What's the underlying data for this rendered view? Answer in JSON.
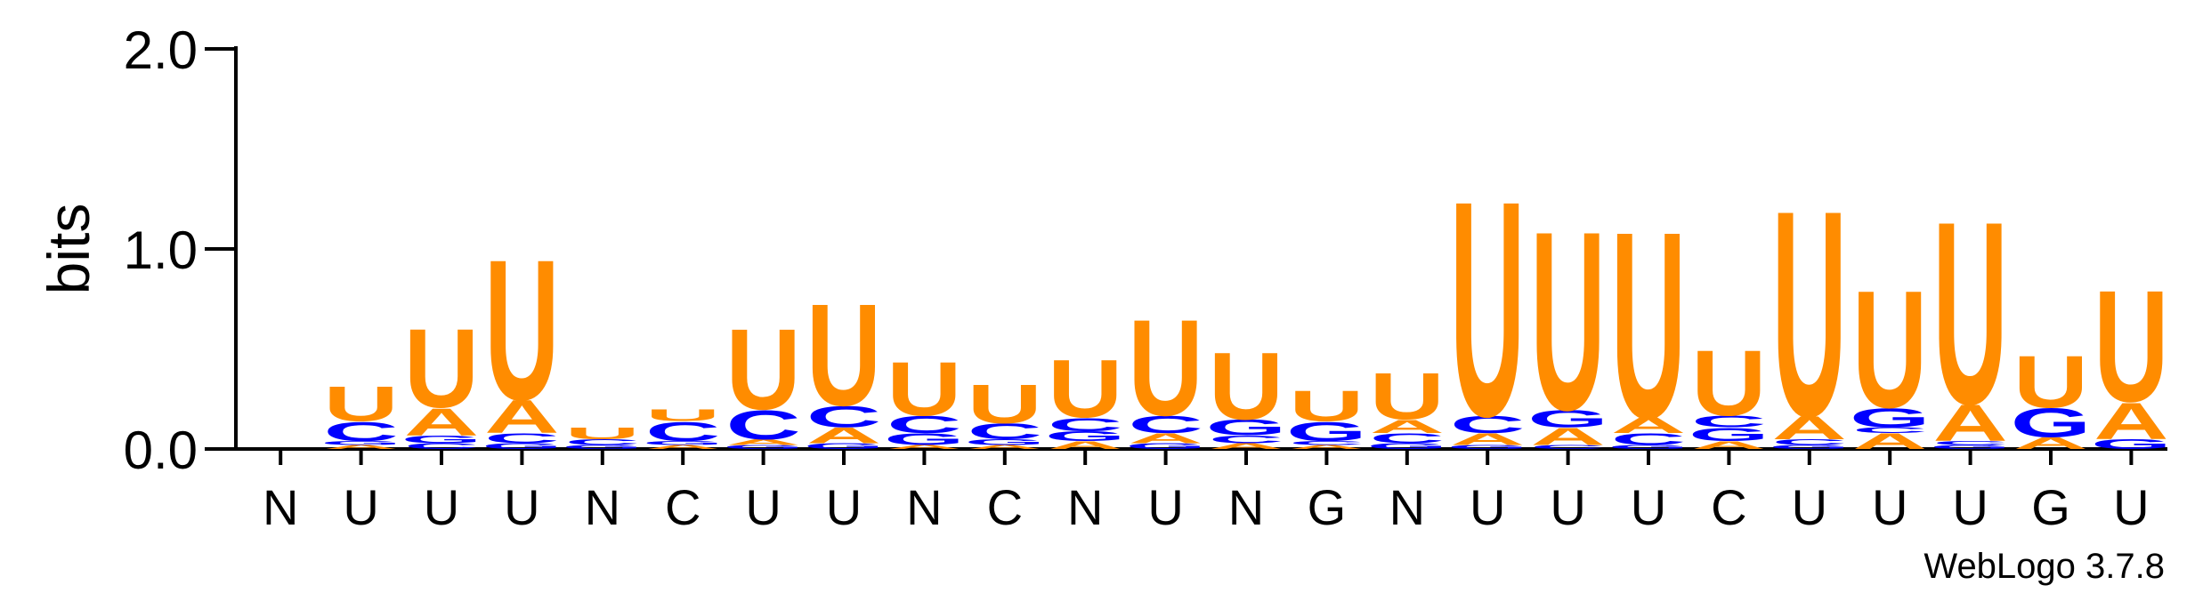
{
  "chart_data": {
    "type": "sequence-logo",
    "ylabel": "bits",
    "ylim": [
      0,
      2.0
    ],
    "yticks": [
      {
        "value": 0.0,
        "label": "0.0"
      },
      {
        "value": 1.0,
        "label": "1.0"
      },
      {
        "value": 2.0,
        "label": "2.0"
      }
    ],
    "colors": {
      "U": "#ff8c00",
      "A": "#ff8c00",
      "C": "#0000ff",
      "G": "#0000ff"
    },
    "positions": [
      {
        "label": "N",
        "stack": []
      },
      {
        "label": "U",
        "stack": [
          {
            "letter": "A",
            "h": 0.02
          },
          {
            "letter": "G",
            "h": 0.02
          },
          {
            "letter": "C",
            "h": 0.1
          },
          {
            "letter": "U",
            "h": 0.18
          }
        ]
      },
      {
        "label": "U",
        "stack": [
          {
            "letter": "C",
            "h": 0.03
          },
          {
            "letter": "G",
            "h": 0.04
          },
          {
            "letter": "A",
            "h": 0.14
          },
          {
            "letter": "U",
            "h": 0.41
          }
        ]
      },
      {
        "label": "U",
        "stack": [
          {
            "letter": "G",
            "h": 0.03
          },
          {
            "letter": "C",
            "h": 0.05
          },
          {
            "letter": "A",
            "h": 0.17
          },
          {
            "letter": "U",
            "h": 0.73
          }
        ]
      },
      {
        "label": "N",
        "stack": [
          {
            "letter": "G",
            "h": 0.02
          },
          {
            "letter": "C",
            "h": 0.03
          },
          {
            "letter": "U",
            "h": 0.06
          }
        ]
      },
      {
        "label": "C",
        "stack": [
          {
            "letter": "A",
            "h": 0.02
          },
          {
            "letter": "G",
            "h": 0.02
          },
          {
            "letter": "C",
            "h": 0.1
          },
          {
            "letter": "U",
            "h": 0.06
          }
        ]
      },
      {
        "label": "U",
        "stack": [
          {
            "letter": "G",
            "h": 0.02
          },
          {
            "letter": "A",
            "h": 0.03
          },
          {
            "letter": "C",
            "h": 0.15
          },
          {
            "letter": "U",
            "h": 0.42
          }
        ]
      },
      {
        "label": "U",
        "stack": [
          {
            "letter": "G",
            "h": 0.03
          },
          {
            "letter": "A",
            "h": 0.08
          },
          {
            "letter": "C",
            "h": 0.11
          },
          {
            "letter": "U",
            "h": 0.53
          }
        ]
      },
      {
        "label": "N",
        "stack": [
          {
            "letter": "A",
            "h": 0.02
          },
          {
            "letter": "G",
            "h": 0.06
          },
          {
            "letter": "C",
            "h": 0.09
          },
          {
            "letter": "U",
            "h": 0.28
          }
        ]
      },
      {
        "label": "C",
        "stack": [
          {
            "letter": "A",
            "h": 0.02
          },
          {
            "letter": "G",
            "h": 0.03
          },
          {
            "letter": "C",
            "h": 0.08
          },
          {
            "letter": "U",
            "h": 0.2
          }
        ]
      },
      {
        "label": "N",
        "stack": [
          {
            "letter": "A",
            "h": 0.04
          },
          {
            "letter": "G",
            "h": 0.05
          },
          {
            "letter": "C",
            "h": 0.07
          },
          {
            "letter": "U",
            "h": 0.3
          }
        ]
      },
      {
        "label": "U",
        "stack": [
          {
            "letter": "G",
            "h": 0.03
          },
          {
            "letter": "A",
            "h": 0.05
          },
          {
            "letter": "C",
            "h": 0.09
          },
          {
            "letter": "U",
            "h": 0.5
          }
        ]
      },
      {
        "label": "N",
        "stack": [
          {
            "letter": "A",
            "h": 0.03
          },
          {
            "letter": "C",
            "h": 0.04
          },
          {
            "letter": "G",
            "h": 0.08
          },
          {
            "letter": "U",
            "h": 0.35
          }
        ]
      },
      {
        "label": "G",
        "stack": [
          {
            "letter": "A",
            "h": 0.02
          },
          {
            "letter": "C",
            "h": 0.02
          },
          {
            "letter": "G",
            "h": 0.1
          },
          {
            "letter": "U",
            "h": 0.16
          }
        ]
      },
      {
        "label": "N",
        "stack": [
          {
            "letter": "G",
            "h": 0.03
          },
          {
            "letter": "C",
            "h": 0.05
          },
          {
            "letter": "A",
            "h": 0.07
          },
          {
            "letter": "U",
            "h": 0.24
          }
        ]
      },
      {
        "label": "U",
        "stack": [
          {
            "letter": "G",
            "h": 0.02
          },
          {
            "letter": "A",
            "h": 0.06
          },
          {
            "letter": "C",
            "h": 0.09
          },
          {
            "letter": "U",
            "h": 1.12
          }
        ]
      },
      {
        "label": "U",
        "stack": [
          {
            "letter": "C",
            "h": 0.02
          },
          {
            "letter": "A",
            "h": 0.09
          },
          {
            "letter": "G",
            "h": 0.09
          },
          {
            "letter": "U",
            "h": 0.93
          }
        ]
      },
      {
        "label": "U",
        "stack": [
          {
            "letter": "G",
            "h": 0.02
          },
          {
            "letter": "C",
            "h": 0.06
          },
          {
            "letter": "A",
            "h": 0.08
          },
          {
            "letter": "U",
            "h": 0.97
          }
        ]
      },
      {
        "label": "C",
        "stack": [
          {
            "letter": "A",
            "h": 0.04
          },
          {
            "letter": "G",
            "h": 0.07
          },
          {
            "letter": "C",
            "h": 0.06
          },
          {
            "letter": "U",
            "h": 0.34
          }
        ]
      },
      {
        "label": "U",
        "stack": [
          {
            "letter": "G",
            "h": 0.02
          },
          {
            "letter": "C",
            "h": 0.03
          },
          {
            "letter": "A",
            "h": 0.12
          },
          {
            "letter": "U",
            "h": 1.07
          }
        ]
      },
      {
        "label": "U",
        "stack": [
          {
            "letter": "A",
            "h": 0.08
          },
          {
            "letter": "C",
            "h": 0.03
          },
          {
            "letter": "G",
            "h": 0.1
          },
          {
            "letter": "U",
            "h": 0.61
          }
        ]
      },
      {
        "label": "U",
        "stack": [
          {
            "letter": "G",
            "h": 0.02
          },
          {
            "letter": "C",
            "h": 0.02
          },
          {
            "letter": "A",
            "h": 0.19
          },
          {
            "letter": "U",
            "h": 0.95
          }
        ]
      },
      {
        "label": "G",
        "stack": [
          {
            "letter": "A",
            "h": 0.06
          },
          {
            "letter": "G",
            "h": 0.15
          },
          {
            "letter": "U",
            "h": 0.27
          }
        ]
      },
      {
        "label": "U",
        "stack": [
          {
            "letter": "G",
            "h": 0.05
          },
          {
            "letter": "A",
            "h": 0.19
          },
          {
            "letter": "U",
            "h": 0.58
          }
        ]
      }
    ]
  },
  "footer": {
    "credit": "WebLogo 3.7.8"
  }
}
